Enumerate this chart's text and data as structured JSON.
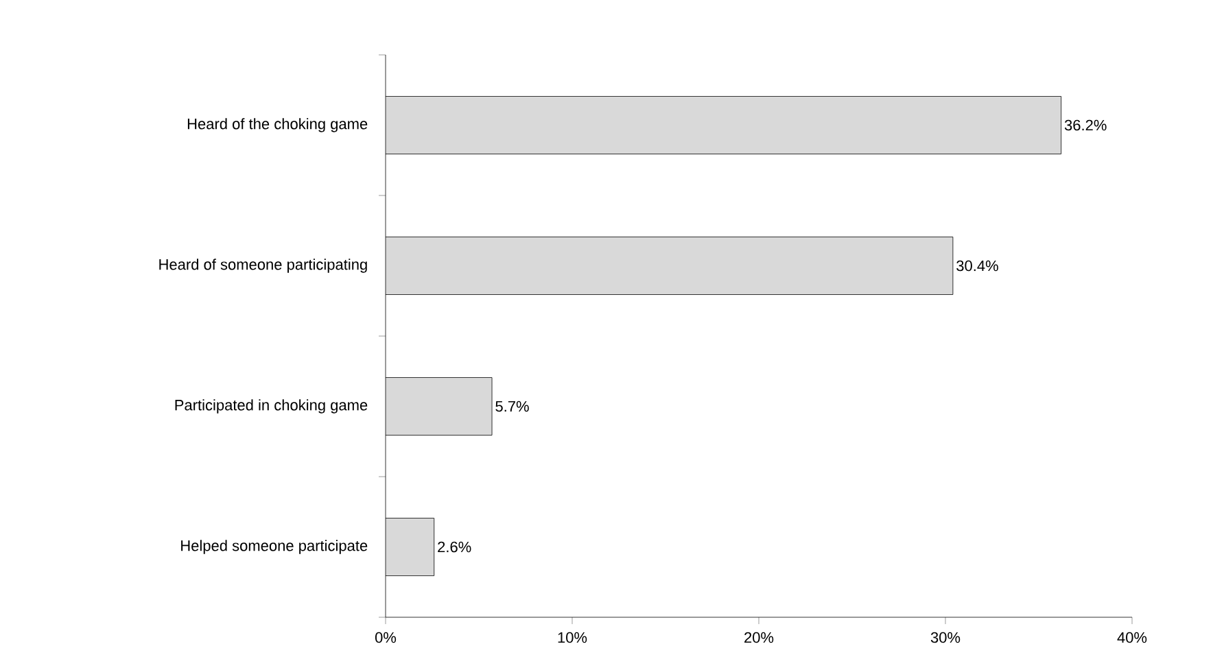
{
  "chart_data": {
    "type": "bar",
    "orientation": "horizontal",
    "categories": [
      "Heard of the choking game",
      "Heard of someone participating",
      "Participated in choking game",
      "Helped someone participate"
    ],
    "values": [
      36.2,
      30.4,
      5.7,
      2.6
    ],
    "value_labels": [
      "36.2%",
      "30.4%",
      "5.7%",
      "2.6%"
    ],
    "color": "#d9d9d9",
    "xlim": [
      0,
      40
    ],
    "xticks": [
      {
        "value": 0,
        "label": "0%"
      },
      {
        "value": 10,
        "label": "10%"
      },
      {
        "value": 20,
        "label": "20%"
      },
      {
        "value": 30,
        "label": "30%"
      },
      {
        "value": 40,
        "label": "40%"
      }
    ],
    "xlabel": null
  }
}
